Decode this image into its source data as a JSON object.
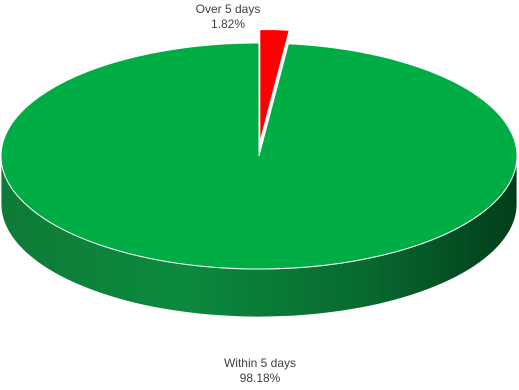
{
  "chart_data": {
    "type": "pie",
    "style": "3d",
    "categories": [
      "Over 5 days",
      "Within 5 days"
    ],
    "values": [
      1.82,
      98.18
    ],
    "value_labels": [
      "1.82%",
      "98.18%"
    ],
    "colors": [
      "#ff0000",
      "#00ad45"
    ],
    "legend": "none"
  }
}
